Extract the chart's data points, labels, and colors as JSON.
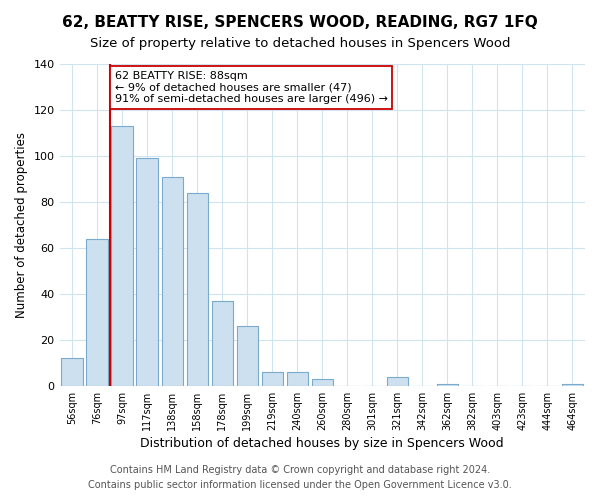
{
  "title": "62, BEATTY RISE, SPENCERS WOOD, READING, RG7 1FQ",
  "subtitle": "Size of property relative to detached houses in Spencers Wood",
  "xlabel": "Distribution of detached houses by size in Spencers Wood",
  "ylabel": "Number of detached properties",
  "bin_labels": [
    "56sqm",
    "76sqm",
    "97sqm",
    "117sqm",
    "138sqm",
    "158sqm",
    "178sqm",
    "199sqm",
    "219sqm",
    "240sqm",
    "260sqm",
    "280sqm",
    "301sqm",
    "321sqm",
    "342sqm",
    "362sqm",
    "382sqm",
    "403sqm",
    "423sqm",
    "444sqm",
    "464sqm"
  ],
  "bar_heights": [
    12,
    64,
    113,
    99,
    91,
    84,
    37,
    26,
    6,
    6,
    3,
    0,
    0,
    4,
    0,
    1,
    0,
    0,
    0,
    0,
    1
  ],
  "bar_color": "#cce0f0",
  "bar_edge_color": "#7aabcc",
  "reference_line_color": "#cc0000",
  "annotation_text": "62 BEATTY RISE: 88sqm\n← 9% of detached houses are smaller (47)\n91% of semi-detached houses are larger (496) →",
  "annotation_box_color": "#ffffff",
  "annotation_box_edge_color": "#cc0000",
  "ylim": [
    0,
    140
  ],
  "yticks": [
    0,
    20,
    40,
    60,
    80,
    100,
    120,
    140
  ],
  "footer_text": "Contains HM Land Registry data © Crown copyright and database right 2024.\nContains public sector information licensed under the Open Government Licence v3.0.",
  "title_fontsize": 11,
  "subtitle_fontsize": 9.5,
  "xlabel_fontsize": 9,
  "ylabel_fontsize": 8.5,
  "footer_fontsize": 7,
  "grid_color": "#d0e4f0"
}
